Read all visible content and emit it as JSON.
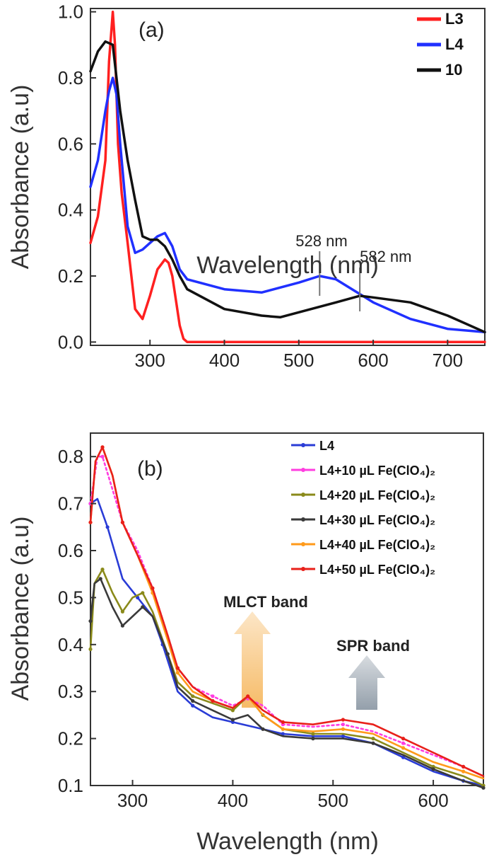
{
  "chart_data": [
    {
      "type": "line",
      "panel": "(a)",
      "xlabel": "Wavelength (nm)",
      "ylabel": "Absorbance (a.u)",
      "xlim": [
        220,
        750
      ],
      "ylim": [
        -0.01,
        1.01
      ],
      "xticks": [
        300,
        400,
        500,
        600,
        700
      ],
      "yticks": [
        0.0,
        0.2,
        0.4,
        0.6,
        0.8,
        1.0
      ],
      "ytick_labels": [
        "0.0",
        "0.2",
        "0.4",
        "0.6",
        "0.8",
        "1.0"
      ],
      "legend_position": "top-right",
      "series": [
        {
          "name": "L3",
          "color": "#ff2020",
          "x": [
            220,
            230,
            240,
            245,
            250,
            253,
            257,
            262,
            270,
            280,
            290,
            300,
            310,
            320,
            325,
            330,
            340,
            345,
            350,
            400,
            500,
            600,
            700,
            750
          ],
          "y": [
            0.3,
            0.38,
            0.55,
            0.85,
            1.0,
            0.9,
            0.6,
            0.45,
            0.3,
            0.1,
            0.07,
            0.14,
            0.22,
            0.25,
            0.24,
            0.2,
            0.05,
            0.01,
            0.0,
            0.0,
            0.0,
            0.0,
            0.0,
            0.0
          ]
        },
        {
          "name": "L4",
          "color": "#2030ff",
          "x": [
            220,
            230,
            240,
            245,
            250,
            255,
            260,
            270,
            280,
            290,
            300,
            310,
            320,
            330,
            340,
            350,
            400,
            450,
            500,
            528,
            550,
            600,
            650,
            700,
            750
          ],
          "y": [
            0.47,
            0.55,
            0.7,
            0.76,
            0.8,
            0.75,
            0.6,
            0.35,
            0.27,
            0.28,
            0.3,
            0.32,
            0.33,
            0.29,
            0.22,
            0.19,
            0.16,
            0.15,
            0.18,
            0.2,
            0.19,
            0.12,
            0.07,
            0.04,
            0.03
          ]
        },
        {
          "name": "10",
          "color": "#111111",
          "x": [
            220,
            230,
            240,
            250,
            260,
            270,
            280,
            290,
            300,
            310,
            320,
            330,
            340,
            350,
            400,
            450,
            475,
            500,
            550,
            582,
            600,
            650,
            700,
            750
          ],
          "y": [
            0.82,
            0.88,
            0.91,
            0.9,
            0.7,
            0.55,
            0.43,
            0.32,
            0.31,
            0.31,
            0.29,
            0.25,
            0.2,
            0.16,
            0.1,
            0.08,
            0.075,
            0.09,
            0.12,
            0.14,
            0.135,
            0.12,
            0.08,
            0.03
          ]
        }
      ],
      "annotations": [
        {
          "text": "528 nm",
          "x": 528
        },
        {
          "text": "582 nm",
          "x": 582
        }
      ]
    },
    {
      "type": "line",
      "panel": "(b)",
      "xlabel": "Wavelength (nm)",
      "ylabel": "Absorbance (a.u)",
      "xlim": [
        258,
        650
      ],
      "ylim": [
        0.1,
        0.85
      ],
      "xticks": [
        300,
        400,
        500,
        600
      ],
      "yticks": [
        0.1,
        0.2,
        0.3,
        0.4,
        0.5,
        0.6,
        0.7,
        0.8
      ],
      "ytick_labels": [
        "0.1",
        "0.2",
        "0.3",
        "0.4",
        "0.5",
        "0.6",
        "0.7",
        "0.8"
      ],
      "legend_position": "top-right",
      "series": [
        {
          "name": "L4",
          "color": "#2a3cd6",
          "x": [
            258,
            265,
            275,
            290,
            305,
            320,
            330,
            345,
            360,
            380,
            400,
            420,
            450,
            480,
            510,
            540,
            570,
            600,
            630,
            650
          ],
          "y": [
            0.7,
            0.71,
            0.65,
            0.54,
            0.5,
            0.46,
            0.4,
            0.3,
            0.27,
            0.245,
            0.235,
            0.225,
            0.21,
            0.205,
            0.205,
            0.19,
            0.16,
            0.13,
            0.11,
            0.1
          ]
        },
        {
          "name": "L4+10 µL Fe(ClO₄)₂",
          "color": "#ff3de0",
          "x": [
            258,
            265,
            270,
            280,
            290,
            305,
            320,
            335,
            345,
            360,
            380,
            400,
            415,
            430,
            450,
            480,
            510,
            540,
            570,
            600,
            630,
            650
          ],
          "y": [
            0.7,
            0.8,
            0.8,
            0.73,
            0.66,
            0.6,
            0.52,
            0.42,
            0.35,
            0.31,
            0.29,
            0.27,
            0.285,
            0.27,
            0.23,
            0.225,
            0.23,
            0.215,
            0.19,
            0.165,
            0.14,
            0.12
          ]
        },
        {
          "name": "L4+20 µL Fe(ClO₄)₂",
          "color": "#8a8a1a",
          "x": [
            258,
            262,
            270,
            280,
            290,
            300,
            310,
            320,
            335,
            345,
            360,
            380,
            400,
            415,
            430,
            450,
            480,
            510,
            540,
            570,
            600,
            630,
            650
          ],
          "y": [
            0.39,
            0.53,
            0.56,
            0.51,
            0.47,
            0.5,
            0.51,
            0.47,
            0.38,
            0.32,
            0.29,
            0.275,
            0.26,
            0.29,
            0.25,
            0.22,
            0.21,
            0.21,
            0.2,
            0.17,
            0.14,
            0.12,
            0.1
          ]
        },
        {
          "name": "L4+30 µL Fe(ClO₄)₂",
          "color": "#3a3a3a",
          "x": [
            258,
            262,
            268,
            280,
            290,
            300,
            310,
            320,
            335,
            345,
            360,
            380,
            400,
            415,
            430,
            450,
            480,
            510,
            540,
            570,
            600,
            630,
            650
          ],
          "y": [
            0.45,
            0.53,
            0.54,
            0.48,
            0.44,
            0.46,
            0.48,
            0.46,
            0.38,
            0.31,
            0.28,
            0.26,
            0.24,
            0.25,
            0.22,
            0.205,
            0.2,
            0.2,
            0.19,
            0.165,
            0.135,
            0.11,
            0.095
          ]
        },
        {
          "name": "L4+40 µL Fe(ClO₄)₂",
          "color": "#ff9a1a",
          "x": [
            258,
            263,
            270,
            280,
            290,
            305,
            320,
            335,
            345,
            360,
            380,
            400,
            415,
            430,
            450,
            480,
            510,
            540,
            570,
            600,
            630,
            650
          ],
          "y": [
            0.66,
            0.79,
            0.82,
            0.76,
            0.66,
            0.59,
            0.51,
            0.41,
            0.34,
            0.3,
            0.28,
            0.265,
            0.29,
            0.25,
            0.22,
            0.215,
            0.22,
            0.21,
            0.18,
            0.15,
            0.13,
            0.115
          ]
        },
        {
          "name": "L4+50 µL Fe(ClO₄)₂",
          "color": "#e8201a",
          "x": [
            258,
            263,
            270,
            280,
            290,
            305,
            320,
            335,
            345,
            360,
            380,
            400,
            415,
            430,
            450,
            480,
            510,
            540,
            570,
            600,
            630,
            650
          ],
          "y": [
            0.66,
            0.79,
            0.82,
            0.76,
            0.66,
            0.59,
            0.52,
            0.42,
            0.35,
            0.31,
            0.28,
            0.265,
            0.29,
            0.26,
            0.235,
            0.23,
            0.24,
            0.23,
            0.2,
            0.17,
            0.14,
            0.12
          ]
        }
      ],
      "annotations": [
        {
          "text": "MLCT band"
        },
        {
          "text": "SPR band"
        }
      ]
    }
  ],
  "colors": {
    "mlct_arrow": "#f6b860",
    "spr_arrow": "#8e9aa6"
  }
}
